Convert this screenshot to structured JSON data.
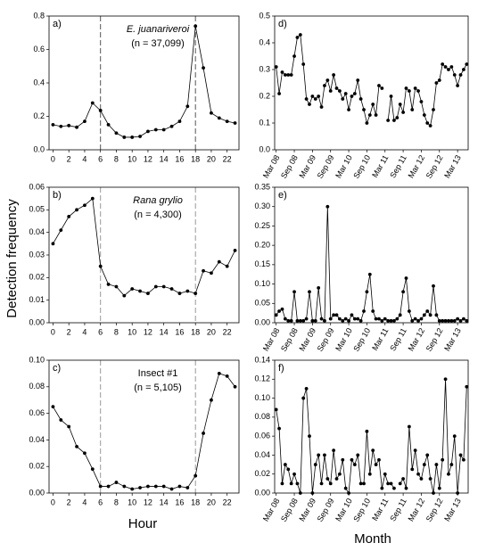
{
  "figure": {
    "ylabel": "Detection frequency",
    "xlabel_left": "Hour",
    "xlabel_right": "Month"
  },
  "chart_data": [
    {
      "type": "line",
      "panel_label": "a)",
      "title": "E. juanariveroi",
      "subtitle": "(n = 37,099)",
      "color": "#000000",
      "vlines": [
        6,
        18
      ],
      "vline_color": "#555555",
      "x": [
        0,
        1,
        2,
        3,
        4,
        5,
        6,
        7,
        8,
        9,
        10,
        11,
        12,
        13,
        14,
        15,
        16,
        17,
        18,
        19,
        20,
        21,
        22,
        23
      ],
      "values": [
        0.15,
        0.14,
        0.145,
        0.135,
        0.17,
        0.28,
        0.235,
        0.15,
        0.1,
        0.075,
        0.075,
        0.08,
        0.11,
        0.12,
        0.12,
        0.14,
        0.17,
        0.26,
        0.74,
        0.49,
        0.22,
        0.19,
        0.17,
        0.16
      ],
      "xlim": [
        -0.5,
        23.5
      ],
      "xticks": [
        0,
        2,
        4,
        6,
        8,
        10,
        12,
        14,
        16,
        18,
        20,
        22
      ],
      "ylim": [
        0,
        0.8
      ],
      "yticks": [
        {
          "value": 0,
          "label": "0.0"
        },
        0.2,
        0.4,
        0.6,
        0.8
      ]
    },
    {
      "type": "line",
      "panel_label": "b)",
      "title": "Rana grylio",
      "subtitle": "(n = 4,300)",
      "color": "#000000",
      "vlines": [
        6,
        18
      ],
      "vline_color": "#999999",
      "x": [
        0,
        1,
        2,
        3,
        4,
        5,
        6,
        7,
        8,
        9,
        10,
        11,
        12,
        13,
        14,
        15,
        16,
        17,
        18,
        19,
        20,
        21,
        22,
        23
      ],
      "values": [
        0.035,
        0.041,
        0.047,
        0.05,
        0.052,
        0.055,
        0.025,
        0.017,
        0.016,
        0.012,
        0.015,
        0.014,
        0.013,
        0.016,
        0.016,
        0.015,
        0.013,
        0.014,
        0.013,
        0.023,
        0.022,
        0.027,
        0.025,
        0.032
      ],
      "xlim": [
        -0.5,
        23.5
      ],
      "xticks": [
        0,
        2,
        4,
        6,
        8,
        10,
        12,
        14,
        16,
        18,
        20,
        22
      ],
      "ylim": [
        0,
        0.06
      ],
      "yticks": [
        {
          "value": 0,
          "label": "0.00"
        },
        {
          "value": 0.01,
          "label": "0.01"
        },
        {
          "value": 0.02,
          "label": "0.02"
        },
        {
          "value": 0.03,
          "label": "0.03"
        },
        {
          "value": 0.04,
          "label": "0.04"
        },
        {
          "value": 0.05,
          "label": "0.05"
        },
        {
          "value": 0.06,
          "label": "0.06"
        }
      ]
    },
    {
      "type": "line",
      "panel_label": "c)",
      "title": "Insect #1",
      "subtitle": "(n = 5,105)",
      "color": "#000000",
      "vlines": [
        6,
        18
      ],
      "vline_color": "#999999",
      "x": [
        0,
        1,
        2,
        3,
        4,
        5,
        6,
        7,
        8,
        9,
        10,
        11,
        12,
        13,
        14,
        15,
        16,
        17,
        18,
        19,
        20,
        21,
        22,
        23
      ],
      "values": [
        0.065,
        0.055,
        0.05,
        0.035,
        0.03,
        0.018,
        0.005,
        0.005,
        0.008,
        0.005,
        0.003,
        0.004,
        0.005,
        0.005,
        0.005,
        0.003,
        0.005,
        0.004,
        0.013,
        0.045,
        0.07,
        0.09,
        0.088,
        0.08
      ],
      "xlim": [
        -0.5,
        23.5
      ],
      "xticks": [
        0,
        2,
        4,
        6,
        8,
        10,
        12,
        14,
        16,
        18,
        20,
        22
      ],
      "ylim": [
        0,
        0.1
      ],
      "yticks": [
        {
          "value": 0,
          "label": "0.00"
        },
        {
          "value": 0.02,
          "label": "0.02"
        },
        {
          "value": 0.04,
          "label": "0.04"
        },
        {
          "value": 0.06,
          "label": "0.06"
        },
        {
          "value": 0.08,
          "label": "0.08"
        },
        {
          "value": 0.1,
          "label": "0.10"
        }
      ]
    },
    {
      "type": "line",
      "panel_label": "d)",
      "color": "#000000",
      "categories": [
        "Mar 08",
        null,
        null,
        null,
        null,
        null,
        "Sep 08",
        null,
        null,
        null,
        null,
        null,
        "Mar 09",
        null,
        null,
        null,
        null,
        null,
        "Sep 09",
        null,
        null,
        null,
        null,
        null,
        "Mar 10",
        null,
        null,
        null,
        null,
        null,
        "Sep 10",
        null,
        null,
        null,
        null,
        null,
        "Mar 11",
        null,
        null,
        null,
        null,
        null,
        "Sep 11",
        null,
        null,
        null,
        null,
        null,
        "Mar 12",
        null,
        null,
        null,
        null,
        null,
        "Sep 12",
        null,
        null,
        null,
        null,
        null,
        "Mar 13",
        null,
        null,
        null
      ],
      "values": [
        0.31,
        0.21,
        0.29,
        0.28,
        0.28,
        0.28,
        0.35,
        0.42,
        0.43,
        0.32,
        0.19,
        0.17,
        0.2,
        0.19,
        0.2,
        0.16,
        0.24,
        0.26,
        0.22,
        0.28,
        0.23,
        0.22,
        0.19,
        0.21,
        0.15,
        0.2,
        0.21,
        0.26,
        0.19,
        0.15,
        0.1,
        0.13,
        0.17,
        0.13,
        0.24,
        0.23,
        null,
        0.11,
        0.2,
        0.11,
        0.12,
        0.17,
        0.14,
        0.23,
        0.22,
        0.15,
        0.23,
        0.22,
        0.18,
        0.13,
        0.1,
        0.09,
        0.15,
        0.25,
        0.26,
        0.32,
        0.31,
        0.3,
        0.31,
        0.28,
        0.24,
        0.28,
        0.3,
        0.32
      ],
      "ylim": [
        0,
        0.5
      ],
      "yticks": [
        {
          "value": 0,
          "label": "0.0"
        },
        0.1,
        0.2,
        0.3,
        0.4,
        0.5
      ]
    },
    {
      "type": "line",
      "panel_label": "e)",
      "color": "#000000",
      "categories": [
        "Mar 08",
        null,
        null,
        null,
        null,
        null,
        "Sep 08",
        null,
        null,
        null,
        null,
        null,
        "Mar 09",
        null,
        null,
        null,
        null,
        null,
        "Sep 09",
        null,
        null,
        null,
        null,
        null,
        "Mar 10",
        null,
        null,
        null,
        null,
        null,
        "Sep 10",
        null,
        null,
        null,
        null,
        null,
        "Mar 11",
        null,
        null,
        null,
        null,
        null,
        "Sep 11",
        null,
        null,
        null,
        null,
        null,
        "Mar 12",
        null,
        null,
        null,
        null,
        null,
        "Sep 12",
        null,
        null,
        null,
        null,
        null,
        "Mar 13",
        null,
        null,
        null
      ],
      "values": [
        0.02,
        0.03,
        0.035,
        0.01,
        0.005,
        0.005,
        0.08,
        0.005,
        0.005,
        0.005,
        0.01,
        0.08,
        0.005,
        0.005,
        0.09,
        0.01,
        0.005,
        0.3,
        0.01,
        0.02,
        0.02,
        0.01,
        0.005,
        0.01,
        0.005,
        0.02,
        0.01,
        0.01,
        0.005,
        0.03,
        0.08,
        0.125,
        0.03,
        0.01,
        0.01,
        0.005,
        0.01,
        0.005,
        0.005,
        0.005,
        0.01,
        0.02,
        0.08,
        0.115,
        0.03,
        0.005,
        0.01,
        0.005,
        0.01,
        0.02,
        0.03,
        0.02,
        0.095,
        0.02,
        0.005,
        0.005,
        0.005,
        0.005,
        0.005,
        0.005,
        0.01,
        0.005,
        0.01,
        0.005
      ],
      "ylim": [
        0,
        0.35
      ],
      "yticks": [
        {
          "value": 0,
          "label": "0.00"
        },
        {
          "value": 0.05,
          "label": "0.05"
        },
        {
          "value": 0.1,
          "label": "0.10"
        },
        {
          "value": 0.15,
          "label": "0.15"
        },
        {
          "value": 0.2,
          "label": "0.20"
        },
        {
          "value": 0.25,
          "label": "0.25"
        },
        {
          "value": 0.3,
          "label": "0.30"
        },
        {
          "value": 0.35,
          "label": "0.35"
        }
      ]
    },
    {
      "type": "line",
      "panel_label": "f)",
      "color": "#000000",
      "categories": [
        "Mar 08",
        null,
        null,
        null,
        null,
        null,
        "Sep 08",
        null,
        null,
        null,
        null,
        null,
        "Mar 09",
        null,
        null,
        null,
        null,
        null,
        "Sep 09",
        null,
        null,
        null,
        null,
        null,
        "Mar 10",
        null,
        null,
        null,
        null,
        null,
        "Sep 10",
        null,
        null,
        null,
        null,
        null,
        "Mar 11",
        null,
        null,
        null,
        null,
        null,
        "Sep 11",
        null,
        null,
        null,
        null,
        null,
        "Mar 12",
        null,
        null,
        null,
        null,
        null,
        "Sep 12",
        null,
        null,
        null,
        null,
        null,
        "Mar 13",
        null,
        null,
        null
      ],
      "values": [
        0.088,
        0.068,
        0.01,
        0.03,
        0.025,
        0.01,
        0.02,
        0.01,
        0.0,
        0.1,
        0.11,
        0.06,
        0.0,
        0.03,
        0.04,
        0.01,
        0.04,
        0.015,
        0.01,
        0.045,
        0.015,
        0.02,
        0.035,
        0.005,
        0.0,
        0.035,
        0.03,
        0.04,
        0.01,
        0.01,
        0.065,
        0.02,
        0.045,
        0.03,
        0.035,
        0.005,
        0.02,
        0.01,
        0.01,
        0.005,
        null,
        0.01,
        0.015,
        0.005,
        0.07,
        0.025,
        0.045,
        0.02,
        0.015,
        0.03,
        0.04,
        0.015,
        0.0,
        0.03,
        0.005,
        0.035,
        0.12,
        0.02,
        0.03,
        0.06,
        0.0,
        0.04,
        0.035,
        0.112
      ],
      "ylim": [
        0,
        0.14
      ],
      "yticks": [
        {
          "value": 0,
          "label": "0.00"
        },
        {
          "value": 0.02,
          "label": "0.02"
        },
        {
          "value": 0.04,
          "label": "0.04"
        },
        {
          "value": 0.06,
          "label": "0.06"
        },
        {
          "value": 0.08,
          "label": "0.08"
        },
        {
          "value": 0.1,
          "label": "0.10"
        },
        {
          "value": 0.12,
          "label": "0.12"
        },
        {
          "value": 0.14,
          "label": "0.14"
        }
      ]
    }
  ]
}
